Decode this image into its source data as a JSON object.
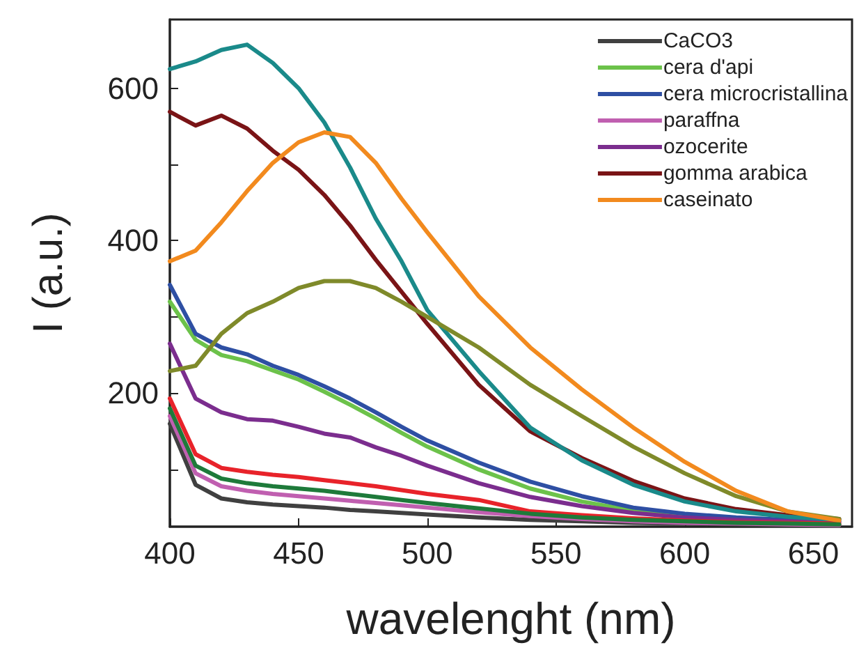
{
  "chart_data": {
    "type": "line",
    "xlabel": "wavelenght (nm)",
    "ylabel": "I (a.u.)",
    "x": [
      400,
      410,
      420,
      430,
      440,
      450,
      460,
      470,
      480,
      490,
      500,
      520,
      540,
      560,
      580,
      600,
      620,
      640,
      660
    ],
    "xlim": [
      400,
      665
    ],
    "xticks": [
      400,
      450,
      500,
      550,
      600,
      650
    ],
    "ylim": [
      25,
      690
    ],
    "yticks": [
      {
        "value": 100,
        "label": null
      },
      200,
      {
        "value": 300,
        "label": null
      },
      400,
      {
        "value": 500,
        "label": null
      },
      600
    ],
    "legend": "top right",
    "series": [
      {
        "name": "CaCO3",
        "color": "#404040",
        "values": [
          160,
          80,
          62,
          57,
          54,
          52,
          50,
          47,
          45,
          43,
          41,
          37,
          34,
          32,
          30,
          29,
          28,
          27,
          27
        ]
      },
      {
        "name": "cera d'api",
        "color": "#6cc24a",
        "values": [
          320,
          270,
          250,
          242,
          230,
          218,
          202,
          185,
          167,
          148,
          130,
          100,
          75,
          58,
          46,
          39,
          35,
          null,
          null
        ]
      },
      {
        "name": "cera microcristallina",
        "color": "#2e4fa3",
        "values": [
          342,
          278,
          260,
          251,
          236,
          224,
          209,
          193,
          175,
          156,
          138,
          109,
          84,
          65,
          50,
          42,
          37,
          34,
          32
        ]
      },
      {
        "name": "paraffna",
        "color": "#c05fb0",
        "values": [
          170,
          95,
          78,
          72,
          68,
          65,
          62,
          59,
          56,
          53,
          50,
          44,
          39,
          35,
          32,
          30,
          29,
          28,
          27
        ]
      },
      {
        "name": "ozocerite",
        "color": "#7b2d8e",
        "values": [
          265,
          193,
          175,
          166,
          164,
          156,
          147,
          142,
          129,
          118,
          105,
          82,
          64,
          52,
          43,
          37,
          34,
          32,
          31
        ]
      },
      {
        "name": "gomma arabica",
        "color": "#7a1416",
        "values": [
          569,
          551,
          564,
          547,
          518,
          493,
          460,
          420,
          375,
          333,
          291,
          211,
          150,
          115,
          85,
          62,
          48,
          40,
          35
        ]
      },
      {
        "color": "#1a8a8a",
        "values": [
          625,
          635,
          650,
          657,
          633,
          600,
          555,
          496,
          429,
          373,
          309,
          229,
          155,
          112,
          80,
          58,
          45,
          38,
          34
        ]
      },
      {
        "color": "#7f8a2a",
        "values": [
          229,
          236,
          278,
          305,
          320,
          338,
          347,
          347,
          338,
          320,
          300,
          260,
          211,
          170,
          130,
          95,
          65,
          45,
          35
        ]
      },
      {
        "color": "#e8232a",
        "values": [
          193,
          120,
          102,
          97,
          93,
          90,
          86,
          82,
          78,
          73,
          68,
          60,
          45,
          40,
          36,
          33,
          31,
          30,
          29
        ]
      },
      {
        "name": "caseinato",
        "color": "#f28a1e",
        "values": [
          373,
          387,
          424,
          465,
          502,
          529,
          542,
          536,
          502,
          455,
          411,
          327,
          260,
          205,
          155,
          110,
          72,
          45,
          33
        ]
      },
      {
        "color": "#1e7a3a",
        "values": [
          180,
          105,
          88,
          82,
          78,
          75,
          72,
          68,
          64,
          60,
          56,
          49,
          42,
          37,
          34,
          32,
          30,
          29,
          28
        ]
      }
    ]
  }
}
